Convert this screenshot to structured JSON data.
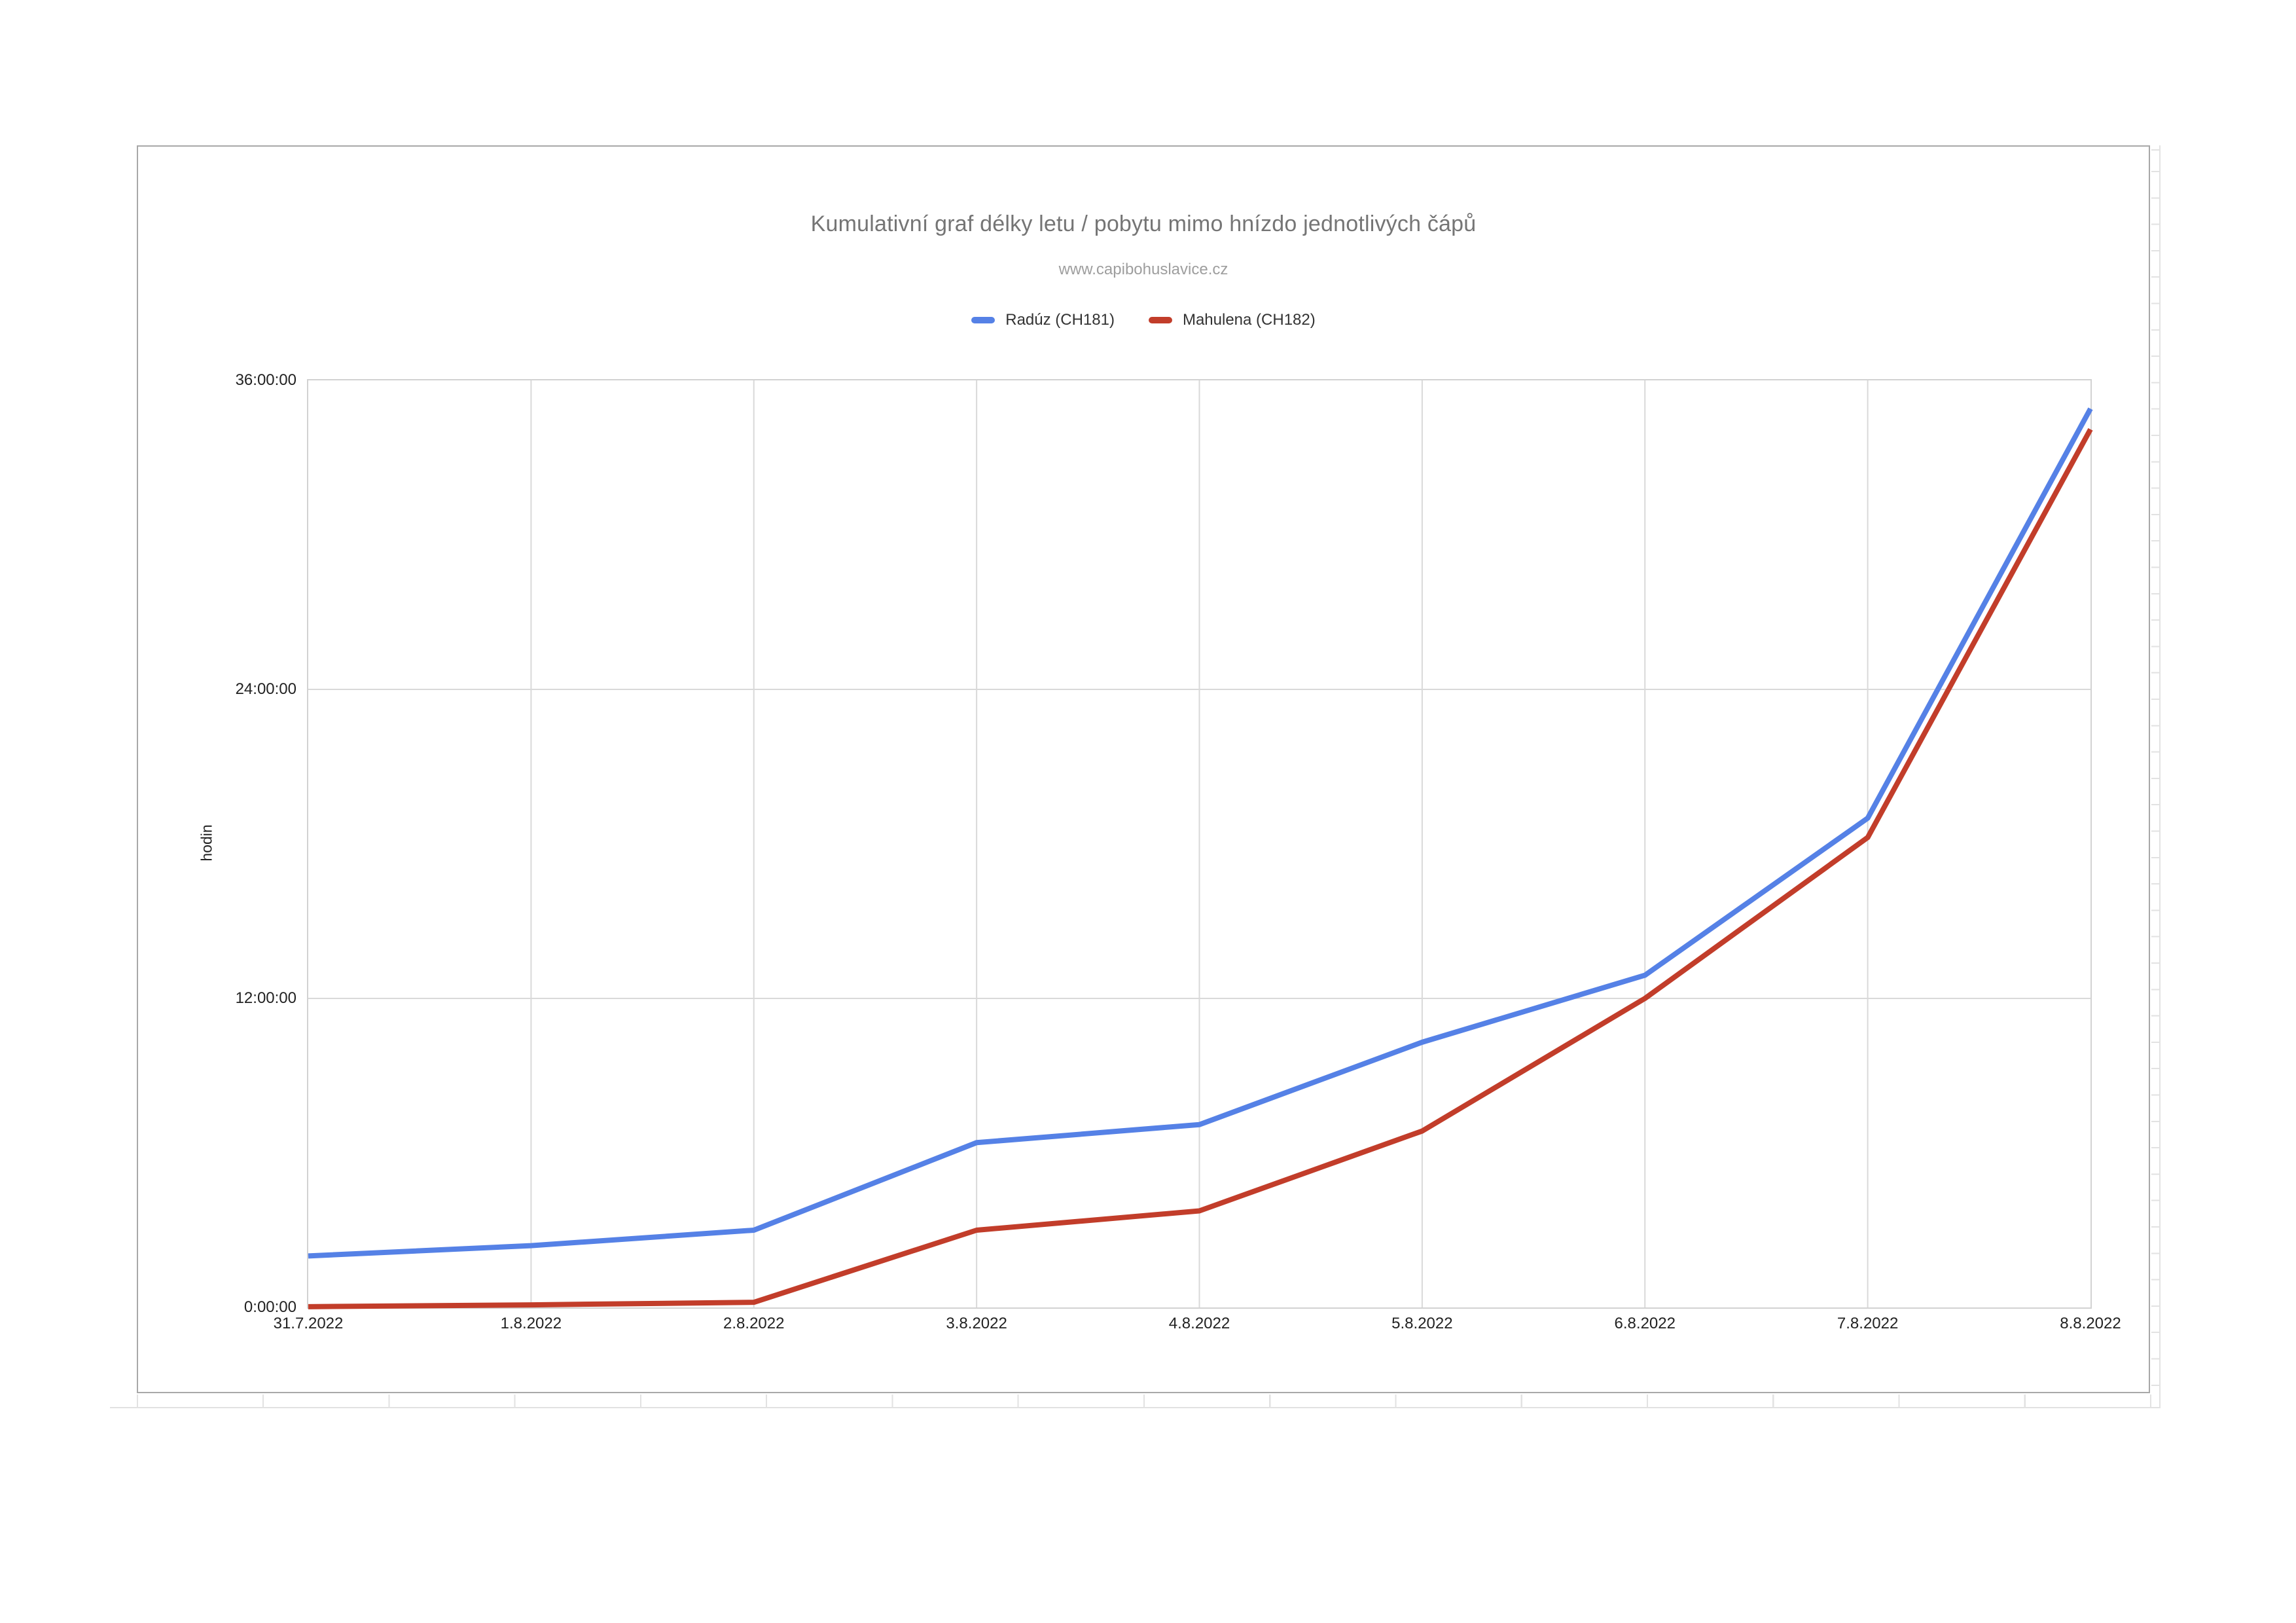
{
  "chart": {
    "title": "Kumulativní graf délky letu / pobytu mimo hnízdo jednotlivých čápů",
    "subtitle": "www.capibohuslavice.cz",
    "y_axis_title": "hodin"
  },
  "chart_data": {
    "type": "line",
    "title": "Kumulativní graf délky letu / pobytu mimo hnízdo jednotlivých čápů",
    "subtitle": "www.capibohuslavice.cz",
    "x": [
      "31.7.2022",
      "1.8.2022",
      "2.8.2022",
      "3.8.2022",
      "4.8.2022",
      "5.8.2022",
      "6.8.2022",
      "7.8.2022",
      "8.8.2022"
    ],
    "series": [
      {
        "name": "Radúz (CH181)",
        "color": "#5581e6",
        "values_hours": [
          2.0,
          2.4,
          3.0,
          6.4,
          7.1,
          10.3,
          12.9,
          19.0,
          34.9
        ]
      },
      {
        "name": "Mahulena (CH182)",
        "color": "#c23d2a",
        "values_hours": [
          0.03,
          0.1,
          0.2,
          3.0,
          3.75,
          6.85,
          12.0,
          18.25,
          34.1
        ]
      }
    ],
    "xlabel": "",
    "ylabel": "hodin",
    "ylim_hours": [
      0,
      36
    ],
    "y_tick_interval_hours": 12,
    "y_ticks": [
      "0:00:00",
      "12:00:00",
      "24:00:00",
      "36:00:00"
    ],
    "grid": true,
    "gridline_color": "#d9d9d9",
    "legend_position": "top"
  }
}
